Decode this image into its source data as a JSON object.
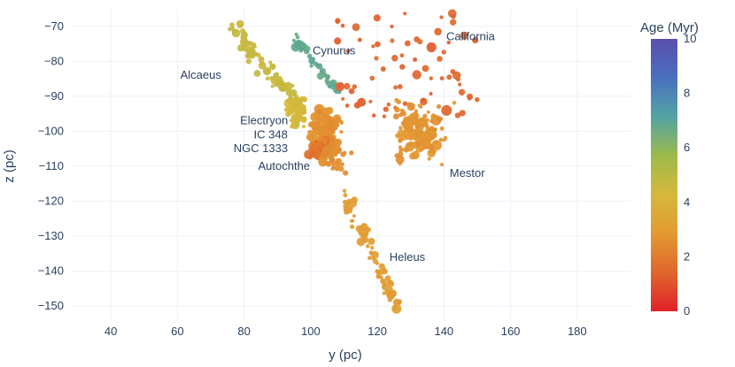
{
  "chart_data": {
    "type": "scatter",
    "title": "",
    "xlabel": "y (pc)",
    "ylabel": "z (pc)",
    "xlim": [
      28,
      196
    ],
    "ylim": [
      -154,
      -65
    ],
    "x_ticks": [
      40,
      60,
      80,
      100,
      120,
      140,
      160,
      180
    ],
    "y_ticks": [
      -70,
      -80,
      -90,
      -100,
      -110,
      -120,
      -130,
      -140,
      -150
    ],
    "grid": true,
    "colorbar": {
      "title": "Age (Myr)",
      "min": 0,
      "max": 10,
      "ticks": [
        0,
        2,
        4,
        6,
        8,
        10
      ],
      "colorscale": [
        "#e0232a",
        "#e0662c",
        "#e39a32",
        "#d6b83c",
        "#9dba4a",
        "#52a4a4",
        "#4a6fbf",
        "#5a4fae"
      ]
    },
    "clusters": [
      {
        "name": "Alcaeus",
        "x_range": [
          75,
          96
        ],
        "y_range": [
          -92,
          -69
        ],
        "age": 4.7,
        "label_x": 67,
        "label_y": -84
      },
      {
        "name": "Cynurus",
        "x_range": [
          95,
          108
        ],
        "y_range": [
          -89,
          -73
        ],
        "age": 6.8,
        "label_x": 107,
        "label_y": -77
      },
      {
        "name": "California",
        "x_range": [
          108,
          150
        ],
        "y_range": [
          -96,
          -66
        ],
        "age": 1.4,
        "label_x": 148,
        "label_y": -73
      },
      {
        "name": "Electryon",
        "x_range": [
          92,
          100
        ],
        "y_range": [
          -101,
          -89
        ],
        "age": 4.3,
        "label_x": 86,
        "label_y": -97
      },
      {
        "name": "IC 348",
        "x_range": [
          97,
          111
        ],
        "y_range": [
          -107,
          -92
        ],
        "age": 2.6,
        "label_x": 88,
        "label_y": -101
      },
      {
        "name": "NGC 1333",
        "x_range": [
          98,
          108
        ],
        "y_range": [
          -109,
          -101
        ],
        "age": 1.8,
        "label_x": 85,
        "label_y": -105
      },
      {
        "name": "Autochthe",
        "x_range": [
          100,
          113
        ],
        "y_range": [
          -113,
          -100
        ],
        "age": 2.5,
        "label_x": 92,
        "label_y": -110
      },
      {
        "name": "Mestor",
        "x_range": [
          121,
          144
        ],
        "y_range": [
          -111,
          -89
        ],
        "age": 2.7,
        "label_x": 147,
        "label_y": -112
      },
      {
        "name": "Heleus",
        "x_range": [
          110,
          126
        ],
        "y_range": [
          -150,
          -118
        ],
        "age": 3.0,
        "label_x": 129,
        "label_y": -136
      }
    ]
  }
}
